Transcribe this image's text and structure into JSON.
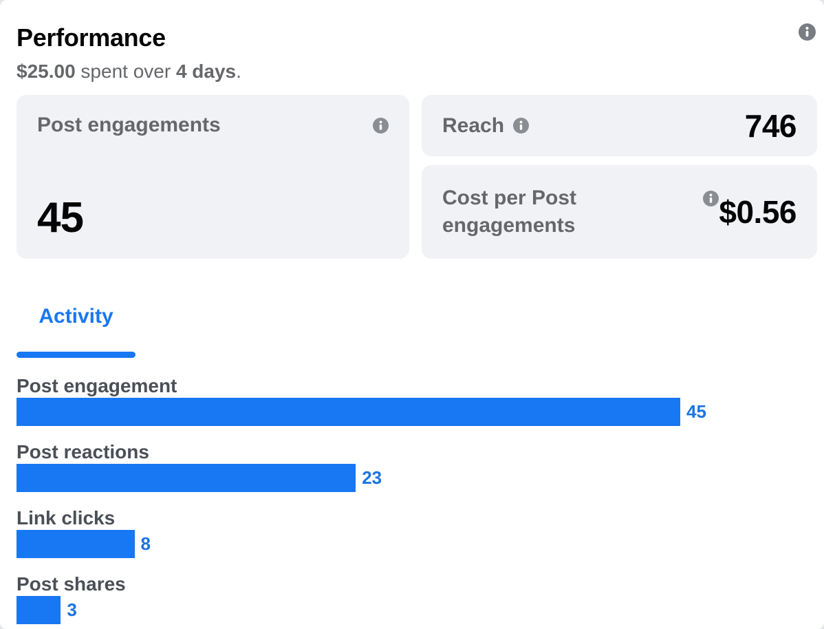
{
  "header": {
    "title": "Performance",
    "spend_amount": "$25.00",
    "spend_connector": " spent over ",
    "spend_duration": "4 days",
    "spend_suffix": "."
  },
  "metric_cards": {
    "post_engagements": {
      "label": "Post engagements",
      "value": "45"
    },
    "reach": {
      "label": "Reach",
      "value": "746"
    },
    "cost_per_post_engagements": {
      "label": "Cost per Post engagements",
      "value": "$0.56"
    }
  },
  "tabs": [
    {
      "label": "Activity",
      "active": true
    }
  ],
  "chart_data": {
    "type": "bar",
    "orientation": "horizontal",
    "title": "Activity",
    "categories": [
      "Post engagement",
      "Post reactions",
      "Link clicks",
      "Post shares"
    ],
    "values": [
      45,
      23,
      8,
      3
    ],
    "value_axis_max": 45,
    "grid": false,
    "legend": false,
    "bar_color": "#1877F2",
    "value_label_color": "#1B74E4"
  },
  "icons": {
    "header_info": "info-icon",
    "post_engagements_info": "info-icon",
    "reach_info": "info-icon",
    "cost_info": "info-icon"
  },
  "colors": {
    "accent_blue": "#1877F2",
    "value_label_blue": "#1B74E4",
    "card_background": "#F0F2F5",
    "primary_text": "#050505",
    "secondary_text": "#65676B",
    "chart_label_text": "#4B4F56",
    "icon_gray": "#8A8D91"
  }
}
